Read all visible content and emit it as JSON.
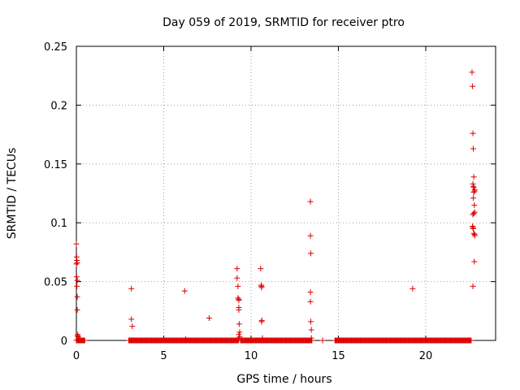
{
  "chart_data": {
    "type": "scatter",
    "title": "Day 059 of 2019, SRMTID for receiver ptro",
    "xlabel": "GPS time / hours",
    "ylabel": "SRMTID / TECUs",
    "xlim": [
      0,
      24
    ],
    "ylim": [
      0,
      0.25
    ],
    "xticks": [
      0,
      5,
      10,
      15,
      20
    ],
    "xtick_labels": [
      "0",
      "5",
      "10",
      "15",
      "20"
    ],
    "yticks": [
      0,
      0.05,
      0.1,
      0.15,
      0.2,
      0.25
    ],
    "ytick_labels": [
      "0",
      "0.05",
      "0.1",
      "0.15",
      "0.2",
      "0.25"
    ],
    "grid": true,
    "marker": "+",
    "color": "#dd0000",
    "dense_zero_ranges": [
      [
        0.0,
        0.5
      ],
      [
        3.0,
        9.3
      ],
      [
        9.4,
        13.5
      ],
      [
        14.8,
        22.6
      ]
    ],
    "series": [
      {
        "x": [
          0.0,
          0.02,
          0.03,
          0.05,
          0.0,
          0.02,
          0.05,
          0.03,
          0.05,
          0.05,
          0.08,
          0.08,
          0.1,
          0.15,
          0.1,
          3.15,
          3.15,
          3.2,
          6.2,
          6.25,
          7.6,
          9.2,
          9.2,
          9.25,
          9.25,
          9.3,
          9.3,
          9.3,
          9.3,
          9.32,
          9.35,
          9.3,
          9.35,
          9.3,
          10.55,
          10.58,
          10.6,
          10.6,
          10.62,
          10.6,
          10.65,
          13.4,
          13.4,
          13.42,
          13.4,
          13.4,
          13.42,
          13.45,
          13.45,
          14.1,
          19.25,
          22.65,
          22.68,
          22.7,
          22.72,
          22.75,
          22.7,
          22.72,
          22.75,
          22.8,
          22.8,
          22.75,
          22.72,
          22.78,
          22.8,
          22.75,
          22.7,
          22.68,
          22.7,
          22.72,
          22.75,
          22.8,
          22.8,
          22.78,
          22.7
        ],
        "y": [
          0.082,
          0.071,
          0.068,
          0.066,
          0.065,
          0.054,
          0.051,
          0.046,
          0.037,
          0.026,
          0.005,
          0.004,
          0.003,
          0.002,
          0.001,
          0.044,
          0.018,
          0.012,
          0.042,
          0.001,
          0.019,
          0.061,
          0.053,
          0.046,
          0.036,
          0.035,
          0.034,
          0.028,
          0.026,
          0.014,
          0.007,
          0.005,
          0.003,
          0.001,
          0.061,
          0.047,
          0.046,
          0.045,
          0.017,
          0.016,
          0.002,
          0.118,
          0.089,
          0.074,
          0.041,
          0.033,
          0.016,
          0.009,
          0.002,
          0.0,
          0.044,
          0.228,
          0.216,
          0.176,
          0.163,
          0.139,
          0.133,
          0.131,
          0.13,
          0.128,
          0.127,
          0.126,
          0.121,
          0.115,
          0.109,
          0.108,
          0.107,
          0.097,
          0.096,
          0.095,
          0.091,
          0.09,
          0.089,
          0.067,
          0.046
        ]
      }
    ]
  }
}
